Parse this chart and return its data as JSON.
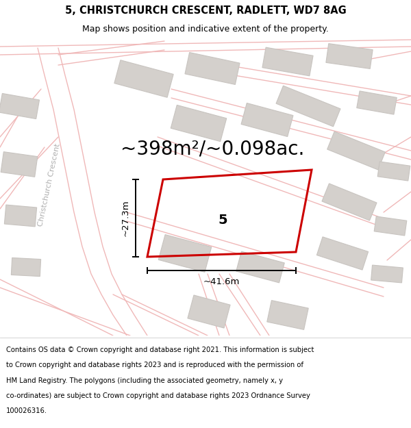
{
  "title_line1": "5, CHRISTCHURCH CRESCENT, RADLETT, WD7 8AG",
  "title_line2": "Map shows position and indicative extent of the property.",
  "area_text": "~398m²/~0.098ac.",
  "dim_width": "~41.6m",
  "dim_height": "~27.3m",
  "plot_number": "5",
  "footer_lines": [
    "Contains OS data © Crown copyright and database right 2021. This information is subject",
    "to Crown copyright and database rights 2023 and is reproduced with the permission of",
    "HM Land Registry. The polygons (including the associated geometry, namely x, y",
    "co-ordinates) are subject to Crown copyright and database rights 2023 Ordnance Survey",
    "100026316."
  ],
  "bg_color": "#ffffff",
  "map_bg": "#efefef",
  "road_color": "#f0b8b8",
  "building_color": "#d4d0cc",
  "building_edge": "#c8c4c0",
  "plot_color": "#cc0000",
  "street_label": "Christchurch Crescent",
  "title_fontsize": 10.5,
  "subtitle_fontsize": 9,
  "area_fontsize": 20,
  "footer_fontsize": 7.2,
  "dim_label_fontsize": 9.5,
  "plot_label_fontsize": 14,
  "street_label_fontsize": 8
}
